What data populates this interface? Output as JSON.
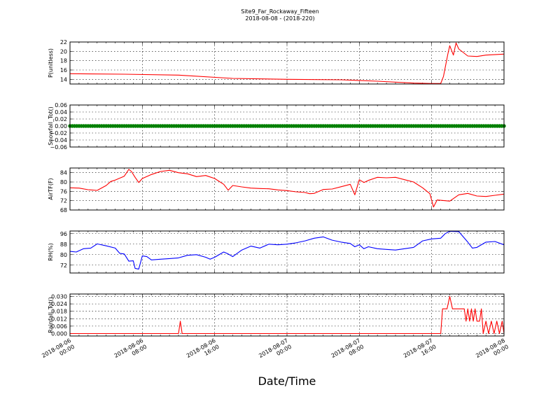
{
  "chart_data": {
    "type": "line",
    "title": "Site9_Far_Rockaway_Fifteen",
    "subtitle": "2018-08-08 - (2018-220)",
    "xlabel": "Date/Time",
    "x_range": [
      "2018-08-06 00:00",
      "2018-08-08 00:00"
    ],
    "x_ticks": [
      {
        "line1": "2018-08-06",
        "line2": "00:00",
        "hours": 0
      },
      {
        "line1": "2018-08-06",
        "line2": "08:00",
        "hours": 8
      },
      {
        "line1": "2018-08-06",
        "line2": "16:00",
        "hours": 16
      },
      {
        "line1": "2018-08-07",
        "line2": "00:00",
        "hours": 24
      },
      {
        "line1": "2018-08-07",
        "line2": "08:00",
        "hours": 32
      },
      {
        "line1": "2018-08-07",
        "line2": "16:00",
        "hours": 40
      },
      {
        "line1": "2018-08-08",
        "line2": "00:00",
        "hours": 48
      }
    ],
    "grid": true,
    "panels": [
      {
        "ylabel": "P(unitless)",
        "ylim": [
          13,
          22
        ],
        "yticks": [
          14,
          16,
          18,
          20,
          22
        ],
        "ytick_labels": [
          "14",
          "16",
          "18",
          "20",
          "22"
        ],
        "color": "#ff0000",
        "style": "line",
        "points": [
          [
            0,
            15.2
          ],
          [
            6,
            15.1
          ],
          [
            12,
            14.9
          ],
          [
            18,
            14.2
          ],
          [
            24,
            14.0
          ],
          [
            30,
            13.9
          ],
          [
            34,
            13.6
          ],
          [
            38,
            13.2
          ],
          [
            40,
            13.1
          ],
          [
            41,
            13.1
          ],
          [
            41.3,
            14.6
          ],
          [
            41.8,
            19.5
          ],
          [
            42,
            21.2
          ],
          [
            42.4,
            19.2
          ],
          [
            42.7,
            21.8
          ],
          [
            43,
            20.5
          ],
          [
            44,
            19.0
          ],
          [
            45,
            18.9
          ],
          [
            46,
            19.2
          ],
          [
            48,
            19.4
          ]
        ]
      },
      {
        "ylabel": "Snowfall_Tot()",
        "ylim": [
          -0.06,
          0.06
        ],
        "yticks": [
          -0.06,
          -0.04,
          -0.02,
          0.0,
          0.02,
          0.04,
          0.06
        ],
        "ytick_labels": [
          "−0.06",
          "−0.04",
          "−0.02",
          "0.00",
          "0.02",
          "0.04",
          "0.06"
        ],
        "color": "#008000",
        "style": "markers",
        "points": [
          [
            0,
            0
          ],
          [
            48,
            0
          ]
        ]
      },
      {
        "ylabel": "AirTF(F)",
        "ylim": [
          68,
          86
        ],
        "yticks": [
          68,
          72,
          76,
          80,
          84
        ],
        "ytick_labels": [
          "68",
          "72",
          "76",
          "80",
          "84"
        ],
        "color": "#ff0000",
        "style": "line",
        "points": [
          [
            0,
            77.5
          ],
          [
            1,
            77.4
          ],
          [
            2,
            76.7
          ],
          [
            3,
            76.4
          ],
          [
            4,
            78.5
          ],
          [
            4.5,
            80.2
          ],
          [
            5,
            80.8
          ],
          [
            6,
            82.5
          ],
          [
            6.5,
            85.4
          ],
          [
            6.8,
            84.5
          ],
          [
            7.2,
            82.0
          ],
          [
            7.6,
            79.8
          ],
          [
            8,
            81.5
          ],
          [
            9,
            83.2
          ],
          [
            10,
            84.5
          ],
          [
            11,
            85.0
          ],
          [
            12,
            84.0
          ],
          [
            13,
            83.5
          ],
          [
            14,
            82.3
          ],
          [
            15,
            82.8
          ],
          [
            16,
            81.5
          ],
          [
            17,
            79.0
          ],
          [
            17.5,
            76.5
          ],
          [
            18,
            78.5
          ],
          [
            19,
            77.9
          ],
          [
            20,
            77.4
          ],
          [
            21,
            77.2
          ],
          [
            22,
            77.1
          ],
          [
            23,
            76.6
          ],
          [
            24,
            76.3
          ],
          [
            25,
            75.8
          ],
          [
            26,
            75.5
          ],
          [
            26.5,
            75.0
          ],
          [
            27,
            75.1
          ],
          [
            28,
            76.8
          ],
          [
            29,
            77.0
          ],
          [
            30,
            78.0
          ],
          [
            31,
            79.0
          ],
          [
            31.5,
            74.5
          ],
          [
            32,
            81.0
          ],
          [
            32.5,
            79.8
          ],
          [
            33,
            80.7
          ],
          [
            34,
            82.0
          ],
          [
            35,
            81.8
          ],
          [
            36,
            82.0
          ],
          [
            37,
            81.0
          ],
          [
            38,
            80.0
          ],
          [
            39,
            77.5
          ],
          [
            39.8,
            75.0
          ],
          [
            40.2,
            69.3
          ],
          [
            40.6,
            72.3
          ],
          [
            41.5,
            72.0
          ],
          [
            42,
            71.8
          ],
          [
            43,
            74.5
          ],
          [
            44,
            75.1
          ],
          [
            45,
            74.0
          ],
          [
            46,
            73.8
          ],
          [
            47,
            74.3
          ],
          [
            48,
            74.8
          ]
        ]
      },
      {
        "ylabel": "RH(%)",
        "ylim": [
          66,
          98
        ],
        "yticks": [
          72,
          80,
          88,
          96
        ],
        "ytick_labels": [
          "72",
          "80",
          "88",
          "96"
        ],
        "color": "#0000ff",
        "style": "line",
        "points": [
          [
            0,
            82.5
          ],
          [
            0.7,
            82.0
          ],
          [
            1.5,
            84.5
          ],
          [
            2.3,
            85.0
          ],
          [
            3,
            88.2
          ],
          [
            4,
            86.7
          ],
          [
            5,
            85.0
          ],
          [
            5.5,
            81.0
          ],
          [
            6,
            80.5
          ],
          [
            6.5,
            75.0
          ],
          [
            7,
            75.3
          ],
          [
            7.2,
            69.5
          ],
          [
            7.6,
            69.0
          ],
          [
            8,
            79.0
          ],
          [
            8.5,
            78.5
          ],
          [
            9,
            76.0
          ],
          [
            10,
            76.5
          ],
          [
            11,
            77.0
          ],
          [
            12,
            77.5
          ],
          [
            13,
            79.5
          ],
          [
            14,
            80.0
          ],
          [
            15,
            78.0
          ],
          [
            15.5,
            76.5
          ],
          [
            16,
            78.0
          ],
          [
            17,
            82.0
          ],
          [
            17.5,
            80.5
          ],
          [
            18,
            78.5
          ],
          [
            19,
            83.5
          ],
          [
            20,
            86.5
          ],
          [
            21,
            85.0
          ],
          [
            22,
            88.0
          ],
          [
            23,
            87.5
          ],
          [
            24,
            88.0
          ],
          [
            25,
            89.0
          ],
          [
            26,
            90.5
          ],
          [
            27,
            92.5
          ],
          [
            28,
            93.5
          ],
          [
            29,
            91.0
          ],
          [
            30,
            89.5
          ],
          [
            31,
            88.5
          ],
          [
            31.5,
            86.0
          ],
          [
            32,
            87.5
          ],
          [
            32.5,
            84.5
          ],
          [
            33,
            86.0
          ],
          [
            34,
            84.5
          ],
          [
            35,
            84.0
          ],
          [
            36,
            83.5
          ],
          [
            37,
            84.5
          ],
          [
            38,
            85.5
          ],
          [
            39,
            90.5
          ],
          [
            40,
            92.0
          ],
          [
            41,
            92.5
          ],
          [
            41.5,
            96.0
          ],
          [
            42,
            97.8
          ],
          [
            43,
            97.5
          ],
          [
            44,
            89.5
          ],
          [
            44.5,
            85.0
          ],
          [
            45,
            85.5
          ],
          [
            46,
            89.5
          ],
          [
            47,
            90.0
          ],
          [
            48,
            87.5
          ]
        ]
      },
      {
        "ylabel": "Rainfall_Tot()",
        "ylim": [
          -0.002,
          0.032
        ],
        "yticks": [
          0.0,
          0.006,
          0.012,
          0.018,
          0.024,
          0.03
        ],
        "ytick_labels": [
          "0.000",
          "0.006",
          "0.012",
          "0.018",
          "0.024",
          "0.030"
        ],
        "color": "#ff0000",
        "style": "line",
        "points": [
          [
            0,
            0
          ],
          [
            12,
            0
          ],
          [
            12.2,
            0.01
          ],
          [
            12.4,
            0
          ],
          [
            41,
            0
          ],
          [
            41.2,
            0.02
          ],
          [
            41.7,
            0.02
          ],
          [
            42,
            0.03
          ],
          [
            42.3,
            0.02
          ],
          [
            43,
            0.02
          ],
          [
            43.6,
            0.02
          ],
          [
            43.8,
            0.01
          ],
          [
            44,
            0.02
          ],
          [
            44.2,
            0.01
          ],
          [
            44.4,
            0.02
          ],
          [
            44.6,
            0.01
          ],
          [
            44.8,
            0.02
          ],
          [
            45,
            0.01
          ],
          [
            45.3,
            0.01
          ],
          [
            45.5,
            0.02
          ],
          [
            45.7,
            0
          ],
          [
            46,
            0.01
          ],
          [
            46.3,
            0
          ],
          [
            46.6,
            0.01
          ],
          [
            46.9,
            0
          ],
          [
            47.2,
            0.01
          ],
          [
            47.5,
            0
          ],
          [
            47.8,
            0.01
          ],
          [
            48,
            0
          ]
        ]
      }
    ]
  }
}
